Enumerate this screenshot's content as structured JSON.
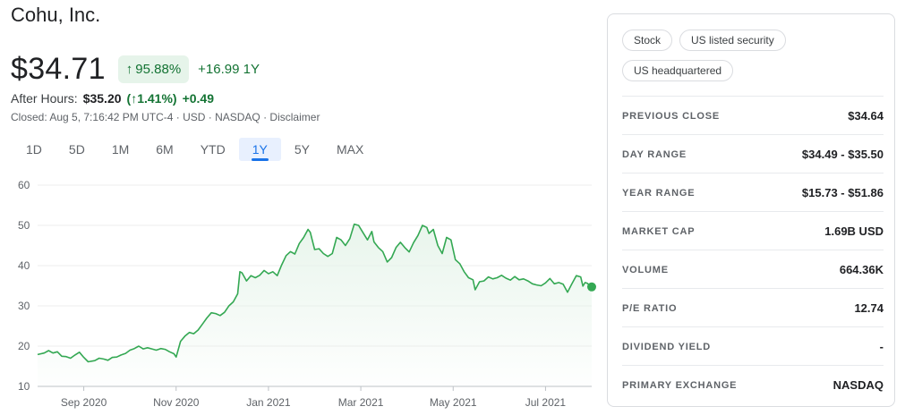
{
  "company": {
    "name": "Cohu, Inc."
  },
  "quote": {
    "price": "$34.71",
    "pct_change": "95.88%",
    "abs_change": "+16.99 1Y",
    "up_arrow": "↑",
    "after_hours_label": "After Hours:",
    "after_hours_price": "$35.20",
    "after_hours_pct": "(↑1.41%)",
    "after_hours_abs": "+0.49",
    "closed_line": "Closed: Aug 5, 7:16:42 PM UTC-4 · USD · NASDAQ · Disclaimer"
  },
  "ranges": [
    "1D",
    "5D",
    "1M",
    "6M",
    "YTD",
    "1Y",
    "5Y",
    "MAX"
  ],
  "active_range": "1Y",
  "chart_data": {
    "type": "area",
    "title": "",
    "xlabel": "",
    "ylabel": "",
    "ylim": [
      10,
      60
    ],
    "yticks": [
      60,
      50,
      40,
      30,
      20,
      10
    ],
    "xlim": [
      0,
      252
    ],
    "xticks": [
      {
        "label": "Sep 2020",
        "x": 21
      },
      {
        "label": "Nov 2020",
        "x": 63
      },
      {
        "label": "Jan 2021",
        "x": 105
      },
      {
        "label": "Mar 2021",
        "x": 147
      },
      {
        "label": "May 2021",
        "x": 189
      },
      {
        "label": "Jul 2021",
        "x": 231
      }
    ],
    "grid": true,
    "line_color": "#34a853",
    "fill_color": "#e6f4ea",
    "series": [
      {
        "points": [
          [
            0,
            17.9
          ],
          [
            3,
            18.3
          ],
          [
            5,
            18.9
          ],
          [
            7,
            18.3
          ],
          [
            9,
            18.6
          ],
          [
            11,
            17.5
          ],
          [
            13,
            17.4
          ],
          [
            15,
            17.0
          ],
          [
            17,
            17.8
          ],
          [
            19,
            18.5
          ],
          [
            21,
            17.2
          ],
          [
            23,
            16.1
          ],
          [
            26,
            16.4
          ],
          [
            28,
            17.0
          ],
          [
            30,
            16.8
          ],
          [
            32,
            16.5
          ],
          [
            34,
            17.2
          ],
          [
            36,
            17.3
          ],
          [
            38,
            17.8
          ],
          [
            40,
            18.2
          ],
          [
            42,
            19.0
          ],
          [
            44,
            19.4
          ],
          [
            46,
            20.0
          ],
          [
            48,
            19.3
          ],
          [
            50,
            19.6
          ],
          [
            52,
            19.3
          ],
          [
            54,
            19.0
          ],
          [
            56,
            19.4
          ],
          [
            58,
            19.2
          ],
          [
            60,
            18.6
          ],
          [
            62,
            18.1
          ],
          [
            63,
            17.3
          ],
          [
            65,
            21.2
          ],
          [
            67,
            22.5
          ],
          [
            69,
            23.4
          ],
          [
            71,
            23.1
          ],
          [
            73,
            24.0
          ],
          [
            75,
            25.5
          ],
          [
            77,
            27.0
          ],
          [
            79,
            28.3
          ],
          [
            81,
            28.1
          ],
          [
            83,
            27.6
          ],
          [
            85,
            28.4
          ],
          [
            87,
            30.0
          ],
          [
            89,
            31.0
          ],
          [
            91,
            33.0
          ],
          [
            92,
            38.5
          ],
          [
            93,
            38.2
          ],
          [
            95,
            36.2
          ],
          [
            97,
            37.5
          ],
          [
            99,
            37.0
          ],
          [
            101,
            37.6
          ],
          [
            103,
            38.8
          ],
          [
            105,
            38.0
          ],
          [
            107,
            38.5
          ],
          [
            109,
            37.5
          ],
          [
            111,
            40.2
          ],
          [
            113,
            42.5
          ],
          [
            115,
            43.5
          ],
          [
            117,
            42.9
          ],
          [
            119,
            45.5
          ],
          [
            121,
            47.0
          ],
          [
            123,
            49.0
          ],
          [
            124,
            48.3
          ],
          [
            126,
            44.0
          ],
          [
            128,
            44.2
          ],
          [
            130,
            43.0
          ],
          [
            132,
            42.3
          ],
          [
            134,
            43.0
          ],
          [
            136,
            47.0
          ],
          [
            138,
            46.4
          ],
          [
            140,
            45.0
          ],
          [
            142,
            46.7
          ],
          [
            144,
            50.3
          ],
          [
            146,
            50.0
          ],
          [
            148,
            48.2
          ],
          [
            150,
            46.4
          ],
          [
            152,
            48.5
          ],
          [
            153,
            45.9
          ],
          [
            155,
            44.5
          ],
          [
            157,
            43.5
          ],
          [
            159,
            40.9
          ],
          [
            161,
            42.0
          ],
          [
            163,
            44.5
          ],
          [
            165,
            45.8
          ],
          [
            167,
            44.5
          ],
          [
            169,
            43.4
          ],
          [
            171,
            45.7
          ],
          [
            173,
            47.5
          ],
          [
            175,
            50.0
          ],
          [
            177,
            49.5
          ],
          [
            178,
            48.0
          ],
          [
            180,
            49.0
          ],
          [
            182,
            45.0
          ],
          [
            184,
            43.0
          ],
          [
            186,
            47.0
          ],
          [
            188,
            46.4
          ],
          [
            190,
            41.5
          ],
          [
            192,
            40.5
          ],
          [
            194,
            38.5
          ],
          [
            196,
            37.0
          ],
          [
            198,
            36.5
          ],
          [
            199,
            34.0
          ],
          [
            201,
            36.0
          ],
          [
            203,
            36.2
          ],
          [
            205,
            37.2
          ],
          [
            207,
            36.7
          ],
          [
            209,
            37.0
          ],
          [
            211,
            37.6
          ],
          [
            213,
            36.9
          ],
          [
            215,
            36.4
          ],
          [
            217,
            37.3
          ],
          [
            219,
            36.5
          ],
          [
            221,
            36.7
          ],
          [
            223,
            36.2
          ],
          [
            225,
            35.5
          ],
          [
            227,
            35.2
          ],
          [
            229,
            35.0
          ],
          [
            231,
            35.7
          ],
          [
            233,
            36.8
          ],
          [
            235,
            35.5
          ],
          [
            237,
            35.8
          ],
          [
            239,
            35.4
          ],
          [
            241,
            33.4
          ],
          [
            243,
            35.5
          ],
          [
            245,
            37.5
          ],
          [
            247,
            37.2
          ],
          [
            248,
            34.9
          ],
          [
            249,
            35.8
          ],
          [
            250,
            35.6
          ],
          [
            252,
            34.71
          ]
        ]
      }
    ]
  },
  "tags": [
    "Stock",
    "US listed security",
    "US headquartered"
  ],
  "stats": [
    {
      "label": "PREVIOUS CLOSE",
      "value": "$34.64"
    },
    {
      "label": "DAY RANGE",
      "value": "$34.49 - $35.50"
    },
    {
      "label": "YEAR RANGE",
      "value": "$15.73 - $51.86"
    },
    {
      "label": "MARKET CAP",
      "value": "1.69B USD"
    },
    {
      "label": "VOLUME",
      "value": "664.36K"
    },
    {
      "label": "P/E RATIO",
      "value": "12.74"
    },
    {
      "label": "DIVIDEND YIELD",
      "value": "-"
    },
    {
      "label": "PRIMARY EXCHANGE",
      "value": "NASDAQ"
    }
  ]
}
